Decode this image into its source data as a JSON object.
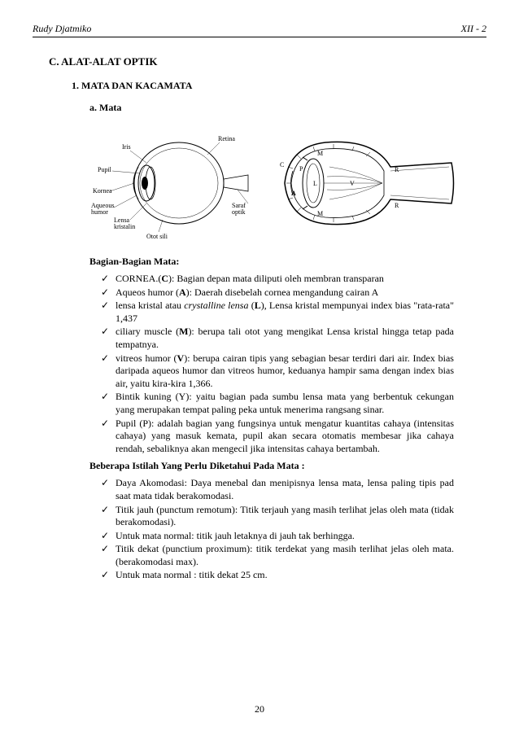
{
  "header": {
    "left": "Rudy Djatmiko",
    "right": "XII - 2"
  },
  "section_c": "C. ALAT-ALAT OPTIK",
  "section_1": "1.  MATA DAN KACAMATA",
  "section_a": "a.   Mata",
  "diagram_left": {
    "labels": [
      "Iris",
      "Pupil",
      "Kornea",
      "Aqueous humor",
      "Lensa kristalin",
      "Otot sili",
      "Retina",
      "Saraf optik"
    ]
  },
  "diagram_right": {
    "labels": [
      "C",
      "P",
      "A",
      "M",
      "M",
      "L",
      "V",
      "R",
      "R"
    ]
  },
  "sub1": "Bagian-Bagian Mata:",
  "list1": [
    "CORNEA.(<b>C</b>): Bagian depan mata diliputi oleh membran transparan",
    "Aqueos humor (<b>A</b>): Daerah disebelah cornea mengandung cairan A",
    "lensa kristal atau <i>crystalline lensa</i> (<b>L</b>), Lensa kristal mempunyai index bias \"rata-rata\" 1,437",
    "ciliary muscle (<b>M</b>): berupa tali otot yang mengikat Lensa kristal hingga tetap pada tempatnya.",
    "vitreos humor (<b>V</b>): berupa cairan tipis yang sebagian besar terdiri dari air. Index bias daripada aqueos humor dan vitreos humor, keduanya hampir sama dengan index bias air, yaitu kira-kira 1,366.",
    "Bintik kuning (Y): yaitu bagian pada sumbu lensa mata yang berbentuk cekungan yang merupakan tempat paling peka untuk menerima rangsang sinar.",
    "Pupil (P): adalah bagian yang fungsinya untuk mengatur kuantitas cahaya (intensitas cahaya) yang masuk kemata, pupil akan secara otomatis membesar jika cahaya rendah, sebaliknya akan mengecil jika intensitas cahaya bertambah."
  ],
  "sub2": "Beberapa Istilah Yang Perlu Diketahui Pada Mata :",
  "list2": [
    "Daya Akomodasi: Daya menebal dan menipisnya lensa mata, lensa paling tipis pad saat mata tidak berakomodasi.",
    "Titik jauh (punctum remotum): Titik terjauh yang masih terlihat jelas oleh mata (tidak berakomodasi).",
    "Untuk mata normal: titik jauh letaknya di jauh tak berhingga.",
    "Titik dekat (punctium proximum): titik terdekat yang masih terlihat jelas oleh mata. (berakomodasi max).",
    "Untuk mata normal : titik dekat 25   cm."
  ],
  "page_number": "20"
}
